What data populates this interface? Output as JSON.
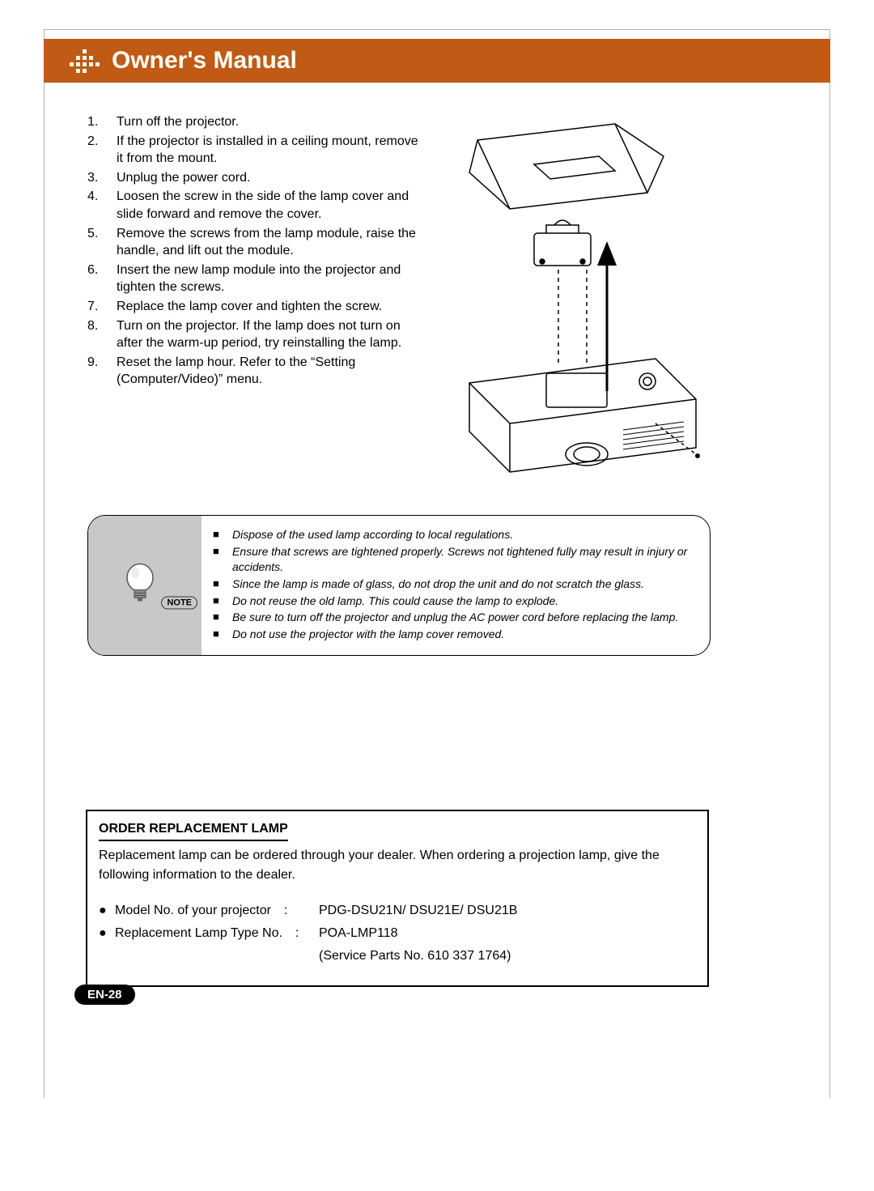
{
  "header": {
    "title": "Owner's Manual",
    "banner_color": "#c05a14",
    "title_color": "#ffffff"
  },
  "steps": [
    {
      "num": "1.",
      "text": "Turn off the projector."
    },
    {
      "num": "2.",
      "text": "If the projector is installed in a ceiling mount, remove it from the mount."
    },
    {
      "num": "3.",
      "text": "Unplug the power cord."
    },
    {
      "num": "4.",
      "text": "Loosen the screw in the side of the lamp cover and slide forward and remove the cover."
    },
    {
      "num": "5.",
      "text": "Remove the screws from the lamp module, raise the handle, and lift out the module."
    },
    {
      "num": "6.",
      "text": "Insert the new lamp module into the projector and tighten the screws."
    },
    {
      "num": "7.",
      "text": "Replace the lamp cover and tighten the screw."
    },
    {
      "num": "8.",
      "text": "Turn on the projector. If the lamp does not turn on after the warm-up period, try reinstalling the lamp."
    },
    {
      "num": "9.",
      "text": "Reset the lamp hour. Refer to the “Setting (Computer/Video)” menu."
    }
  ],
  "note": {
    "label": "NOTE",
    "items": [
      "Dispose of the used lamp according to local regulations.",
      "Ensure that screws are tightened properly. Screws not tightened fully may result in injury or accidents.",
      "Since the lamp is made of glass, do not drop the unit and do not scratch the glass.",
      "Do not reuse the old lamp. This could cause the lamp to explode.",
      "Be sure to turn off the projector and unplug the AC power cord before replacing the lamp.",
      "Do not use the projector with the lamp cover removed."
    ],
    "gray_bg": "#c8c8c8"
  },
  "replacement": {
    "title": "ORDER REPLACEMENT LAMP",
    "intro": "Replacement lamp can be ordered through your dealer.  When ordering a projection lamp, give the following information to the dealer.",
    "rows": [
      {
        "label": "Model No. of your projector",
        "sep": ":",
        "value": "PDG-DSU21N/ DSU21E/ DSU21B"
      },
      {
        "label": "Replacement Lamp Type No.",
        "sep": ":",
        "value": "POA-LMP118"
      }
    ],
    "service": "(Service Parts No. 610 337 1764)"
  },
  "page_number": "EN-28",
  "diagram": {
    "type": "line-drawing",
    "description": "Exploded view of projector lamp replacement: top cover lifted off, lamp module raised with upward arrow, projector body below with lamp cavity and screw locations.",
    "arrow_color": "#000000",
    "line_color": "#000000"
  }
}
